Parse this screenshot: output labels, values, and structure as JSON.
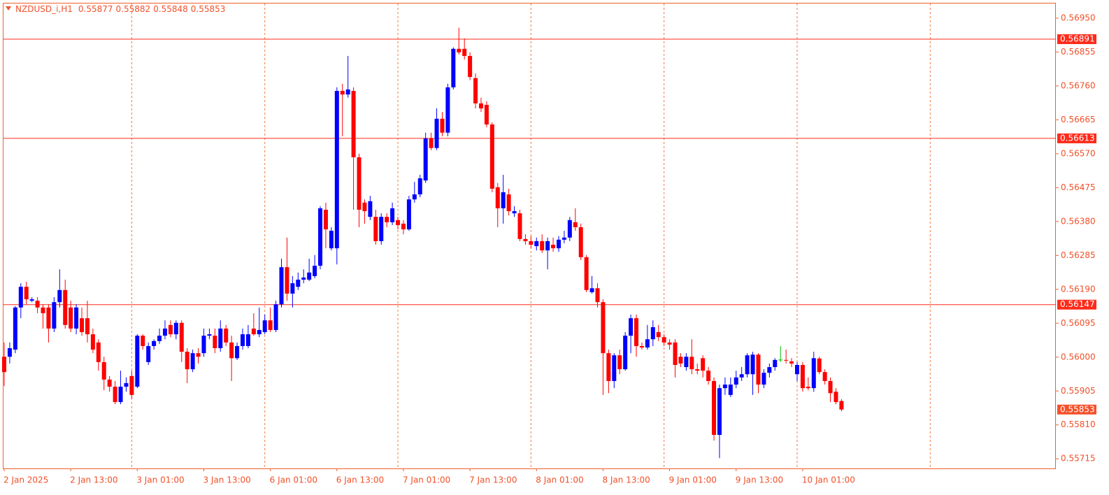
{
  "chart_data": {
    "type": "candlestick",
    "symbol": "NZDUSD_i,H1",
    "categories": [
      "2 Jan 2025",
      null,
      null,
      null,
      null,
      null,
      null,
      null,
      null,
      null,
      null,
      null,
      "2 Jan 13:00",
      null,
      null,
      null,
      null,
      null,
      null,
      null,
      null,
      null,
      null,
      null,
      "3 Jan 01:00",
      null,
      null,
      null,
      null,
      null,
      null,
      null,
      null,
      null,
      null,
      null,
      "3 Jan 13:00",
      null,
      null,
      null,
      null,
      null,
      null,
      null,
      null,
      null,
      null,
      null,
      "6 Jan 01:00",
      null,
      null,
      null,
      null,
      null,
      null,
      null,
      null,
      null,
      null,
      null,
      "6 Jan 13:00",
      null,
      null,
      null,
      null,
      null,
      null,
      null,
      null,
      null,
      null,
      null,
      "7 Jan 01:00",
      null,
      null,
      null,
      null,
      null,
      null,
      null,
      null,
      null,
      null,
      null,
      "7 Jan 13:00",
      null,
      null,
      null,
      null,
      null,
      null,
      null,
      null,
      null,
      null,
      null,
      "8 Jan 01:00",
      null,
      null,
      null,
      null,
      null,
      null,
      null,
      null,
      null,
      null,
      null,
      "8 Jan 13:00",
      null,
      null,
      null,
      null,
      null,
      null,
      null,
      null,
      null,
      null,
      null,
      "9 Jan 01:00",
      null,
      null,
      null,
      null,
      null,
      null,
      null,
      null,
      null,
      null,
      null,
      "9 Jan 13:00",
      null,
      null,
      null,
      null,
      null,
      null,
      null,
      null,
      null,
      null,
      null,
      "10 Jan 01:00",
      null,
      null,
      null,
      null,
      null,
      null,
      null
    ],
    "open": [
      0.56001,
      0.56001,
      0.56021,
      0.56139,
      0.56197,
      0.56158,
      0.56158,
      0.56139,
      0.56139,
      0.5608,
      0.56154,
      0.56188,
      0.56139,
      0.5608,
      0.56109,
      0.56109,
      0.56064,
      0.56041,
      0.55986,
      0.55937,
      0.55917,
      0.55874,
      0.55917,
      0.55947,
      0.55917,
      0.5606,
      0.55986,
      0.56031,
      0.56045,
      0.5606,
      0.5609,
      0.56064,
      0.56096,
      0.56015,
      0.55966,
      0.56011,
      0.56011,
      0.5606,
      0.5606,
      0.56025,
      0.5608,
      0.56041,
      0.55997,
      0.56031,
      0.56031,
      0.5608,
      0.56064,
      0.5607,
      0.56103,
      0.56076,
      0.56148,
      0.56252,
      0.56178,
      0.56197,
      0.56217,
      0.56217,
      0.56227,
      0.56256,
      0.56413,
      0.56305,
      0.56305,
      0.56746,
      0.56736,
      0.56746,
      0.5656,
      0.56433,
      0.56393,
      0.56393,
      0.56325,
      0.56393,
      0.56378,
      0.56384,
      0.56374,
      0.56358,
      0.56442,
      0.56456,
      0.56495,
      0.56613,
      0.56586,
      0.56668,
      0.56629,
      0.56756,
      0.56864,
      0.56864,
      0.56844,
      0.56782,
      0.56711,
      0.56707,
      0.56652,
      0.56476,
      0.56417,
      0.56456,
      0.56403,
      0.56403,
      0.56331,
      0.56325,
      0.56311,
      0.56325,
      0.56299,
      0.56315,
      0.56305,
      0.56329,
      0.56335,
      0.56378,
      0.56364,
      0.5628,
      0.56182,
      0.56193,
      0.56154,
      0.56011,
      0.55933,
      0.56005,
      0.55966,
      0.5606,
      0.56109,
      0.56031,
      0.56027,
      0.5605,
      0.5607,
      0.56056,
      0.56041,
      0.56041,
      0.56001,
      0.55972,
      0.56001,
      0.55966,
      0.55997,
      0.55962,
      0.55933,
      0.55782,
      0.55913,
      0.55894,
      0.55923,
      0.55943,
      0.55952,
      0.55952,
      0.56007,
      0.55923,
      0.55956,
      0.55972,
      0.55992,
      0.55992,
      0.55988,
      0.55952,
      0.55978,
      0.55917,
      0.55913,
      0.55996,
      0.55958,
      0.55933,
      0.55903,
      0.55877
    ],
    "high": [
      0.56041,
      0.56041,
      0.56143,
      0.56207,
      0.56211,
      0.56168,
      0.56168,
      0.56148,
      0.56148,
      0.56168,
      0.56246,
      0.56217,
      0.56158,
      0.56148,
      0.56139,
      0.56158,
      0.5608,
      0.5605,
      0.56001,
      0.55947,
      0.55933,
      0.55962,
      0.55943,
      0.55962,
      0.56064,
      0.56064,
      0.56041,
      0.5605,
      0.5608,
      0.56103,
      0.56103,
      0.56103,
      0.56103,
      0.56025,
      0.56021,
      0.56025,
      0.5608,
      0.5608,
      0.5608,
      0.56103,
      0.5609,
      0.5606,
      0.56041,
      0.5608,
      0.5609,
      0.56123,
      0.56139,
      0.56119,
      0.56139,
      0.56158,
      0.56276,
      0.56335,
      0.56227,
      0.56237,
      0.56246,
      0.56276,
      0.56286,
      0.56423,
      0.56433,
      0.56364,
      0.56756,
      0.56766,
      0.56844,
      0.56756,
      0.5657,
      0.56442,
      0.56452,
      0.56413,
      0.56403,
      0.56403,
      0.56433,
      0.56393,
      0.56384,
      0.56452,
      0.56491,
      0.56511,
      0.56629,
      0.56629,
      0.56697,
      0.56687,
      0.56766,
      0.56868,
      0.56923,
      0.56893,
      0.56854,
      0.56795,
      0.56727,
      0.56717,
      0.56658,
      0.56488,
      0.56511,
      0.56472,
      0.56423,
      0.56413,
      0.56344,
      0.56339,
      0.56335,
      0.56344,
      0.56335,
      0.56335,
      0.56339,
      0.56354,
      0.56393,
      0.56417,
      0.56374,
      0.56286,
      0.56227,
      0.56207,
      0.56162,
      0.56021,
      0.56011,
      0.56021,
      0.5607,
      0.56119,
      0.56119,
      0.56041,
      0.5609,
      0.56103,
      0.5609,
      0.56064,
      0.5605,
      0.5605,
      0.56011,
      0.56011,
      0.5605,
      0.55982,
      0.56005,
      0.55972,
      0.55943,
      0.55923,
      0.55943,
      0.55943,
      0.55962,
      0.55972,
      0.56011,
      0.56015,
      0.56011,
      0.55966,
      0.55982,
      0.55997,
      0.56031,
      0.56021,
      0.55997,
      0.55986,
      0.55986,
      0.55943,
      0.56015,
      0.56001,
      0.55966,
      0.55943,
      0.55913,
      0.55882
    ],
    "low": [
      0.55919,
      0.55982,
      0.56011,
      0.56109,
      0.56148,
      0.56154,
      0.56123,
      0.5608,
      0.56041,
      0.5607,
      0.56139,
      0.5608,
      0.5607,
      0.56064,
      0.5606,
      0.56041,
      0.56011,
      0.55962,
      0.55907,
      0.55903,
      0.55868,
      0.55868,
      0.55903,
      0.55884,
      0.55913,
      0.56021,
      0.55978,
      0.56021,
      0.56037,
      0.5605,
      0.56056,
      0.5605,
      0.55986,
      0.55927,
      0.55958,
      0.55982,
      0.56001,
      0.5605,
      0.56011,
      0.56015,
      0.56031,
      0.55933,
      0.55992,
      0.56021,
      0.56025,
      0.5606,
      0.56056,
      0.56064,
      0.5607,
      0.5607,
      0.56139,
      0.56158,
      0.56139,
      0.56188,
      0.56207,
      0.56213,
      0.56221,
      0.56246,
      0.56305,
      0.56299,
      0.5626,
      0.56619,
      0.56727,
      0.56413,
      0.56364,
      0.56374,
      0.56384,
      0.56315,
      0.56315,
      0.56364,
      0.5637,
      0.56358,
      0.56344,
      0.56354,
      0.56433,
      0.56448,
      0.56488,
      0.5658,
      0.5658,
      0.56619,
      0.56619,
      0.5675,
      0.56848,
      0.56834,
      0.56776,
      0.56697,
      0.56687,
      0.56644,
      0.56462,
      0.56364,
      0.56374,
      0.56397,
      0.56393,
      0.56325,
      0.56315,
      0.56305,
      0.56299,
      0.56292,
      0.56246,
      0.56295,
      0.56295,
      0.56319,
      0.56325,
      0.56354,
      0.56272,
      0.56182,
      0.56178,
      0.56139,
      0.55894,
      0.55899,
      0.55913,
      0.55952,
      0.55962,
      0.56011,
      0.56001,
      0.56021,
      0.56021,
      0.56031,
      0.56045,
      0.56031,
      0.56021,
      0.55943,
      0.55972,
      0.55962,
      0.55952,
      0.55952,
      0.55943,
      0.55923,
      0.55766,
      0.55717,
      0.55894,
      0.55888,
      0.55913,
      0.55933,
      0.55943,
      0.55894,
      0.55899,
      0.55913,
      0.55943,
      0.55962,
      0.55986,
      0.55982,
      0.55972,
      0.55933,
      0.55903,
      0.55907,
      0.55903,
      0.55952,
      0.55923,
      0.55874,
      0.55868,
      0.55848
    ],
    "close": [
      0.55958,
      0.56025,
      0.56139,
      0.56197,
      0.56162,
      0.56162,
      0.56139,
      0.56123,
      0.5608,
      0.56154,
      0.56188,
      0.5609,
      0.5608,
      0.56139,
      0.5607,
      0.56064,
      0.56021,
      0.55986,
      0.55937,
      0.55917,
      0.55874,
      0.55917,
      0.55927,
      0.55894,
      0.5606,
      0.56031,
      0.56031,
      0.56045,
      0.5606,
      0.5608,
      0.56064,
      0.56096,
      0.56015,
      0.55966,
      0.56011,
      0.56001,
      0.5606,
      0.56064,
      0.56025,
      0.5608,
      0.56041,
      0.55997,
      0.56031,
      0.56064,
      0.56064,
      0.56064,
      0.56076,
      0.56103,
      0.56076,
      0.56148,
      0.56252,
      0.56178,
      0.56207,
      0.56217,
      0.56223,
      0.56237,
      0.56256,
      0.56417,
      0.56358,
      0.56354,
      0.56746,
      0.56736,
      0.5675,
      0.5656,
      0.56413,
      0.56409,
      0.56437,
      0.56325,
      0.56393,
      0.56378,
      0.56417,
      0.5637,
      0.56358,
      0.56442,
      0.56456,
      0.56501,
      0.56613,
      0.56586,
      0.56668,
      0.56629,
      0.56756,
      0.56864,
      0.56854,
      0.56844,
      0.56785,
      0.56711,
      0.56697,
      0.56652,
      0.56472,
      0.56417,
      0.56462,
      0.56409,
      0.56409,
      0.56331,
      0.56325,
      0.56315,
      0.56325,
      0.56299,
      0.56325,
      0.56305,
      0.56329,
      0.56335,
      0.56384,
      0.56364,
      0.5628,
      0.56188,
      0.56193,
      0.56154,
      0.56011,
      0.55933,
      0.56005,
      0.55966,
      0.5606,
      0.56109,
      0.56031,
      0.56027,
      0.5605,
      0.56084,
      0.56056,
      0.56041,
      0.56035,
      0.55978,
      0.55982,
      0.56001,
      0.55966,
      0.55962,
      0.55962,
      0.55933,
      0.55782,
      0.55913,
      0.55923,
      0.55923,
      0.55943,
      0.55952,
      0.56005,
      0.56007,
      0.55923,
      0.55956,
      0.55972,
      0.55992,
      0.55992,
      0.5599,
      0.55982,
      0.55978,
      0.55913,
      0.55913,
      0.55997,
      0.55958,
      0.55933,
      0.55899,
      0.55874,
      0.55853
    ],
    "up_color": "#0000ff",
    "down_color": "#ff0000",
    "doji_color": "#00c000",
    "hlines": [
      0.56891,
      0.56613,
      0.56147
    ],
    "hline_color": "#ff2a1a",
    "grid": true,
    "ylim": [
      0.55688,
      0.56991
    ],
    "yticks": [
      {
        "value": 0.5695,
        "label": "0.56950"
      },
      {
        "value": 0.56855,
        "label": "0.56855"
      },
      {
        "value": 0.5676,
        "label": "0.56760"
      },
      {
        "value": 0.56665,
        "label": "0.56665"
      },
      {
        "value": 0.5657,
        "label": "0.56570"
      },
      {
        "value": 0.56475,
        "label": "0.56475"
      },
      {
        "value": 0.5638,
        "label": "0.56380"
      },
      {
        "value": 0.56285,
        "label": "0.56285"
      },
      {
        "value": 0.5619,
        "label": "0.56190"
      },
      {
        "value": 0.56095,
        "label": "0.56095"
      },
      {
        "value": 0.56,
        "label": "0.56000"
      },
      {
        "value": 0.55905,
        "label": "0.55905"
      },
      {
        "value": 0.5581,
        "label": "0.55810"
      },
      {
        "value": 0.55715,
        "label": "0.55715"
      }
    ]
  }
}
